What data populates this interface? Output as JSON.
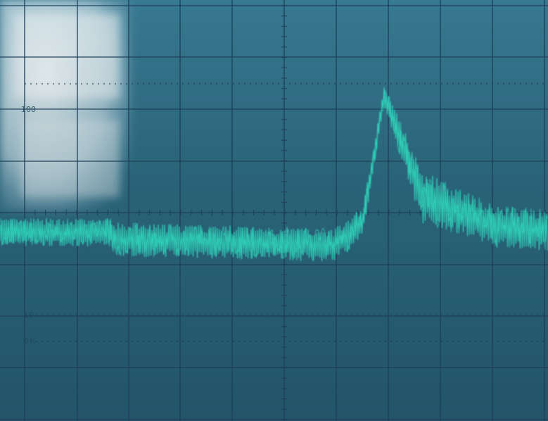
{
  "screen": {
    "phosphor_color": "#2ee0c0",
    "background_color": "#2f6f86",
    "grid_color": "#1d3f58",
    "glare_color": "#e8f4f8"
  },
  "graticule_labels": {
    "top_left": "100",
    "ten_percent": "10",
    "zero_percent": "0%"
  }
}
